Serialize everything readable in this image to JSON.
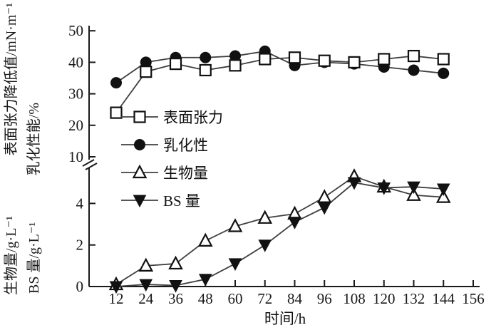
{
  "colors": {
    "axis": "#1a1a1a",
    "line": "#3f3f3f",
    "marker": "#111111",
    "text": "#1a1a1a",
    "background": "#ffffff"
  },
  "axes": {
    "y_label_outer_bottom": "生物量/g·L⁻¹",
    "y_label_outer_top": "表面张力降低值/mN·m⁻¹",
    "y_label_inner_bottom": "BS 量/g·L⁻¹",
    "y_label_inner_top": "乳化性能/%",
    "y_ticks_upper": [
      50,
      40,
      30,
      20,
      10
    ],
    "y_ticks_lower": [
      4,
      2,
      0
    ],
    "x_ticks": [
      12,
      24,
      36,
      48,
      60,
      72,
      84,
      96,
      108,
      120,
      132,
      144,
      156
    ],
    "axis_break": true
  },
  "chart_data": {
    "type": "line",
    "title": "",
    "xlabel": "时间/h",
    "ylabel_left_outer": "生物量/g·L⁻¹ 表面张力降低值/mN·m⁻¹",
    "ylabel_left_inner": "BS 量/g·L⁻¹ 乳化性能/%",
    "x": [
      12,
      24,
      36,
      48,
      60,
      72,
      84,
      96,
      108,
      120,
      132,
      144
    ],
    "x_ticks": [
      12,
      24,
      36,
      48,
      60,
      72,
      84,
      96,
      108,
      120,
      132,
      144,
      156
    ],
    "xlim": [
      0,
      156
    ],
    "y_axis": {
      "broken": true,
      "upper_section_range": [
        10,
        50
      ],
      "upper_ticks": [
        10,
        20,
        30,
        40,
        50
      ],
      "lower_section_range": [
        0,
        6
      ],
      "lower_ticks": [
        0,
        2,
        4
      ]
    },
    "grid": false,
    "legend_position": "upper-left-inside",
    "series": [
      {
        "id": "surface-tension",
        "name": "表面张力",
        "marker": "square-open",
        "axis": "upper",
        "values": [
          24,
          37,
          39.5,
          37.5,
          39,
          41,
          41.5,
          40.5,
          40,
          41,
          42,
          41
        ]
      },
      {
        "id": "emulsification",
        "name": "乳化性",
        "marker": "circle-filled",
        "axis": "upper",
        "values": [
          33.5,
          40,
          41.5,
          41.5,
          42,
          43.5,
          39,
          40,
          39.5,
          38.5,
          37.5,
          36.5
        ]
      },
      {
        "id": "biomass",
        "name": "生物量",
        "marker": "triangle-open",
        "axis": "lower",
        "values": [
          0.1,
          1.0,
          1.1,
          2.2,
          2.9,
          3.3,
          3.5,
          4.3,
          5.3,
          4.8,
          4.4,
          4.3
        ]
      },
      {
        "id": "bs-amount",
        "name": "BS 量",
        "marker": "triangle-filled",
        "axis": "lower",
        "values": [
          0,
          0.1,
          0.05,
          0.35,
          1.1,
          2.0,
          3.1,
          3.8,
          5.0,
          4.75,
          4.8,
          4.7
        ]
      }
    ]
  }
}
